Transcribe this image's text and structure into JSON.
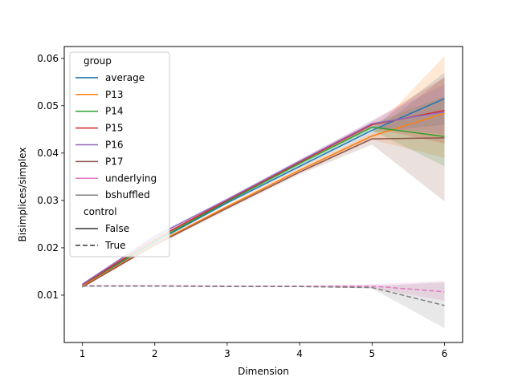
{
  "chart_data": {
    "type": "line",
    "title": "",
    "xlabel": "Dimension",
    "ylabel": "Bisimplices/simplex",
    "x": [
      1,
      2,
      3,
      4,
      5,
      6
    ],
    "xlim": [
      0.75,
      6.25
    ],
    "ylim": [
      0.0,
      0.0625
    ],
    "xticks": [
      1,
      2,
      3,
      4,
      5,
      6
    ],
    "yticks": [
      0.01,
      0.02,
      0.03,
      0.04,
      0.05,
      0.06
    ],
    "ytick_labels": [
      "0.01",
      "0.02",
      "0.03",
      "0.04",
      "0.05",
      "0.06"
    ],
    "grid": false,
    "legend": {
      "placement": "upper-left",
      "group_title": "group",
      "control_title": "control",
      "control_entries": [
        {
          "label": "False",
          "dash": "solid"
        },
        {
          "label": "True",
          "dash": "dashed"
        }
      ]
    },
    "series": [
      {
        "name": "average",
        "color": "#1f77b4",
        "control": "False",
        "values": [
          0.0121,
          0.0212,
          0.0295,
          0.0372,
          0.0448,
          0.0515
        ],
        "band_low": [
          0.0119,
          0.021,
          0.0292,
          0.0368,
          0.0443,
          0.046
        ],
        "band_high": [
          0.0123,
          0.0214,
          0.0298,
          0.0376,
          0.0453,
          0.057
        ]
      },
      {
        "name": "P13",
        "color": "#ff7f0e",
        "control": "False",
        "values": [
          0.0119,
          0.0208,
          0.0287,
          0.0364,
          0.0436,
          0.0484
        ],
        "band_low": [
          0.0117,
          0.0205,
          0.0283,
          0.0358,
          0.0428,
          0.039
        ],
        "band_high": [
          0.0121,
          0.0211,
          0.0291,
          0.037,
          0.0444,
          0.0605
        ]
      },
      {
        "name": "P14",
        "color": "#2ca02c",
        "control": "False",
        "values": [
          0.0122,
          0.0214,
          0.0298,
          0.0378,
          0.0455,
          0.0435
        ],
        "band_low": [
          0.012,
          0.0211,
          0.0295,
          0.0374,
          0.0448,
          0.0372
        ],
        "band_high": [
          0.0124,
          0.0217,
          0.0301,
          0.0382,
          0.0462,
          0.052
        ]
      },
      {
        "name": "P15",
        "color": "#d62728",
        "control": "False",
        "values": [
          0.0122,
          0.0218,
          0.03,
          0.0381,
          0.046,
          0.049
        ],
        "band_low": [
          0.012,
          0.0215,
          0.0297,
          0.0377,
          0.0453,
          0.042
        ],
        "band_high": [
          0.0124,
          0.0221,
          0.0303,
          0.0385,
          0.0467,
          0.056
        ]
      },
      {
        "name": "P16",
        "color": "#9467bd",
        "control": "False",
        "values": [
          0.0123,
          0.0224,
          0.0302,
          0.0383,
          0.0462,
          0.0487
        ],
        "band_low": [
          0.0121,
          0.0221,
          0.0299,
          0.0379,
          0.0455,
          0.044
        ],
        "band_high": [
          0.0125,
          0.0227,
          0.0305,
          0.0387,
          0.0469,
          0.0545
        ]
      },
      {
        "name": "P17",
        "color": "#8c564b",
        "control": "False",
        "values": [
          0.0117,
          0.0206,
          0.0284,
          0.036,
          0.043,
          0.0432
        ],
        "band_low": [
          0.0115,
          0.0203,
          0.028,
          0.0355,
          0.0418,
          0.0298
        ],
        "band_high": [
          0.0119,
          0.0209,
          0.0288,
          0.0365,
          0.0442,
          0.056
        ]
      },
      {
        "name": "underlying",
        "color": "#e377c2",
        "control": "True",
        "values": [
          0.012,
          0.012,
          0.0119,
          0.0119,
          0.0119,
          0.0107
        ],
        "band_low": [
          0.0119,
          0.0119,
          0.0118,
          0.0118,
          0.0115,
          0.0088
        ],
        "band_high": [
          0.0121,
          0.0121,
          0.012,
          0.012,
          0.0123,
          0.013
        ]
      },
      {
        "name": "bshuffled",
        "color": "#7f7f7f",
        "control": "True",
        "values": [
          0.0119,
          0.0119,
          0.0118,
          0.0118,
          0.0116,
          0.0078
        ],
        "band_low": [
          0.0118,
          0.0118,
          0.0117,
          0.0117,
          0.0114,
          0.003
        ],
        "band_high": [
          0.012,
          0.012,
          0.0119,
          0.0119,
          0.0119,
          0.0127
        ]
      }
    ]
  }
}
